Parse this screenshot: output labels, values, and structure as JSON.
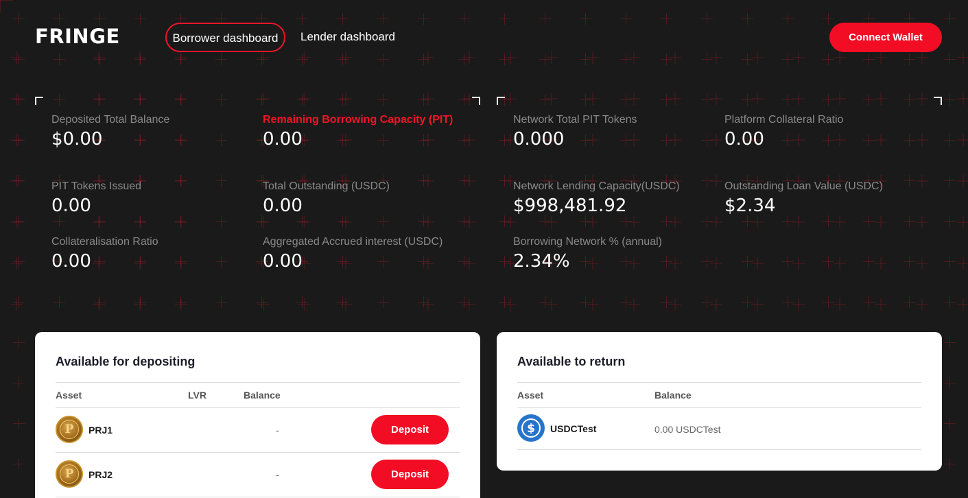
{
  "header": {
    "logo": "FRINGE",
    "tabs": [
      {
        "label": "Borrower dashboard",
        "active": true
      },
      {
        "label": "Lender dashboard",
        "active": false
      }
    ],
    "connect_wallet": "Connect Wallet"
  },
  "borrower_stats": {
    "deposited_total_balance": {
      "label": "Deposited Total Balance",
      "value": "$0.00"
    },
    "remaining_borrowing_capacity": {
      "label": "Remaining Borrowing Capacity (PIT)",
      "value": "0.00"
    },
    "pit_tokens_issued": {
      "label": "PIT Tokens Issued",
      "value": "0.00"
    },
    "total_outstanding": {
      "label": "Total Outstanding (USDC)",
      "value": "0.00"
    },
    "collateralisation_ratio": {
      "label": "Collateralisation Ratio",
      "value": "0.00"
    },
    "aggregated_accrued_interest": {
      "label": "Aggregated Accrued interest (USDC)",
      "value": "0.00"
    }
  },
  "network_stats": {
    "network_total_pit_tokens": {
      "label": "Network Total PIT Tokens",
      "value": "0.000"
    },
    "platform_collateral_ratio": {
      "label": "Platform Collateral Ratio",
      "value": "0.00"
    },
    "network_lending_capacity": {
      "label": "Network Lending Capacity(USDC)",
      "value": "$998,481.92"
    },
    "outstanding_loan_value": {
      "label": "Outstanding Loan Value (USDC)",
      "value": "$2.34"
    },
    "borrowing_network_pct": {
      "label": "Borrowing Network % (annual)",
      "value": "2.34%"
    }
  },
  "depositing": {
    "title": "Available for depositing",
    "columns": {
      "asset": "Asset",
      "lvr": "LVR",
      "balance": "Balance"
    },
    "rows": [
      {
        "asset": "PRJ1",
        "lvr": "",
        "balance": "-",
        "action": "Deposit",
        "icon": "prj-coin-icon"
      },
      {
        "asset": "PRJ2",
        "lvr": "",
        "balance": "-",
        "action": "Deposit",
        "icon": "prj-coin-icon"
      }
    ]
  },
  "returning": {
    "title": "Available to return",
    "columns": {
      "asset": "Asset",
      "balance": "Balance"
    },
    "rows": [
      {
        "asset": "USDCTest",
        "balance": "0.00 USDCTest",
        "icon": "usdc-icon"
      }
    ]
  },
  "colors": {
    "background": "#1a1a1a",
    "accent": "#f20d24",
    "usdc": "#2775ca"
  }
}
